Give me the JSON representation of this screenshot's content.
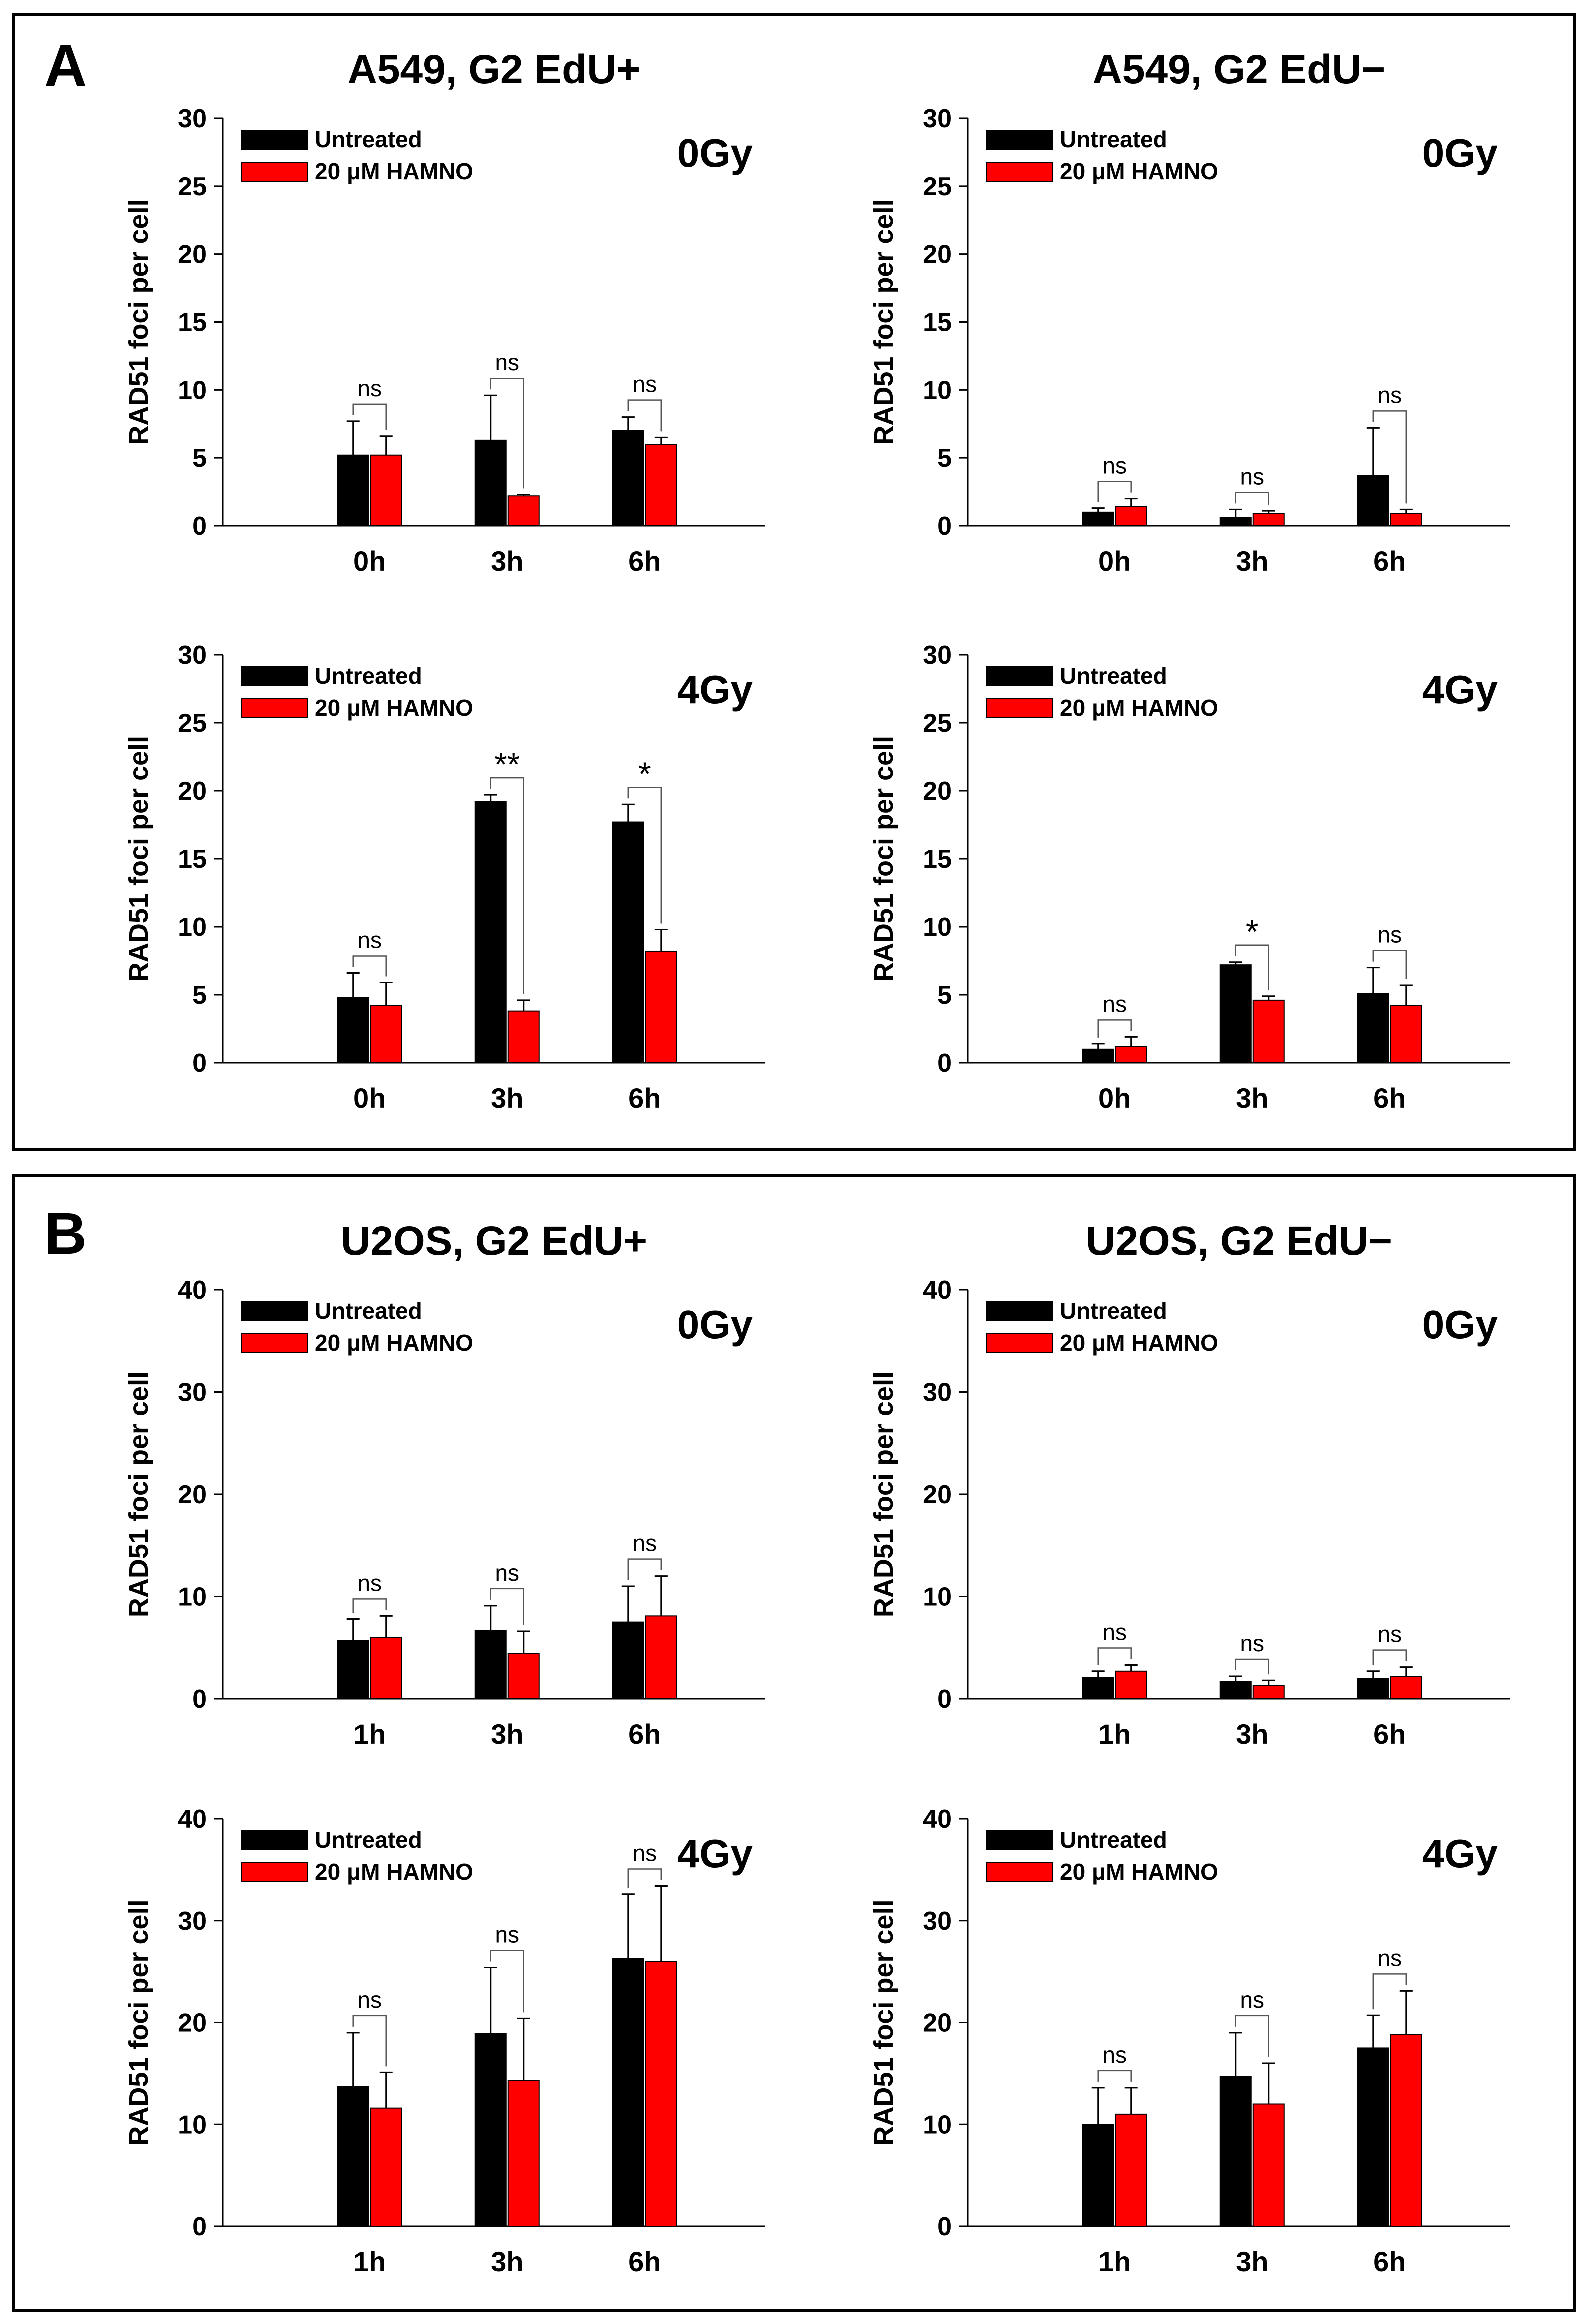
{
  "figure": {
    "panels": [
      {
        "letter": "A"
      },
      {
        "letter": "B"
      }
    ]
  },
  "legend": {
    "untreated": "Untreated",
    "treated": "20 μM HAMNO"
  },
  "colors": {
    "untreated": "#000000",
    "treated": "#ff0000",
    "frame": "#000000"
  },
  "chart_data": [
    {
      "type": "bar",
      "panel": "A",
      "title": "A549, G2 EdU+",
      "dose": "0Gy",
      "xlabel": "",
      "ylabel": "RAD51 foci per cell",
      "ylim": [
        0,
        30
      ],
      "yticks": [
        0,
        5,
        10,
        15,
        20,
        25,
        30
      ],
      "categories": [
        "0h",
        "3h",
        "6h"
      ],
      "series": [
        {
          "name": "Untreated",
          "values": [
            5.2,
            6.3,
            7.0
          ],
          "errors": [
            2.5,
            3.3,
            1.0
          ]
        },
        {
          "name": "20 μM HAMNO",
          "values": [
            5.2,
            2.2,
            6.0
          ],
          "errors": [
            1.4,
            0.1,
            0.5
          ]
        }
      ],
      "significance": [
        "ns",
        "ns",
        "ns"
      ]
    },
    {
      "type": "bar",
      "panel": "A",
      "title": "A549, G2 EdU−",
      "dose": "0Gy",
      "xlabel": "",
      "ylabel": "RAD51 foci per cell",
      "ylim": [
        0,
        30
      ],
      "yticks": [
        0,
        5,
        10,
        15,
        20,
        25,
        30
      ],
      "categories": [
        "0h",
        "3h",
        "6h"
      ],
      "series": [
        {
          "name": "Untreated",
          "values": [
            1.0,
            0.6,
            3.7
          ],
          "errors": [
            0.3,
            0.6,
            3.5
          ]
        },
        {
          "name": "20 μM HAMNO",
          "values": [
            1.4,
            0.9,
            0.9
          ],
          "errors": [
            0.6,
            0.2,
            0.3
          ]
        }
      ],
      "significance": [
        "ns",
        "ns",
        "ns"
      ]
    },
    {
      "type": "bar",
      "panel": "A",
      "title": "",
      "dose": "4Gy",
      "xlabel": "",
      "ylabel": "RAD51 foci per cell",
      "ylim": [
        0,
        30
      ],
      "yticks": [
        0,
        5,
        10,
        15,
        20,
        25,
        30
      ],
      "categories": [
        "0h",
        "3h",
        "6h"
      ],
      "series": [
        {
          "name": "Untreated",
          "values": [
            4.8,
            19.2,
            17.7
          ],
          "errors": [
            1.8,
            0.5,
            1.3
          ]
        },
        {
          "name": "20 μM HAMNO",
          "values": [
            4.2,
            3.8,
            8.2
          ],
          "errors": [
            1.7,
            0.8,
            1.6
          ]
        }
      ],
      "significance": [
        "ns",
        "**",
        "*"
      ]
    },
    {
      "type": "bar",
      "panel": "A",
      "title": "",
      "dose": "4Gy",
      "xlabel": "",
      "ylabel": "RAD51 foci per cell",
      "ylim": [
        0,
        30
      ],
      "yticks": [
        0,
        5,
        10,
        15,
        20,
        25,
        30
      ],
      "categories": [
        "0h",
        "3h",
        "6h"
      ],
      "series": [
        {
          "name": "Untreated",
          "values": [
            1.0,
            7.2,
            5.1
          ],
          "errors": [
            0.4,
            0.2,
            1.9
          ]
        },
        {
          "name": "20 μM HAMNO",
          "values": [
            1.2,
            4.6,
            4.2
          ],
          "errors": [
            0.7,
            0.3,
            1.5
          ]
        }
      ],
      "significance": [
        "ns",
        "*",
        "ns"
      ]
    },
    {
      "type": "bar",
      "panel": "B",
      "title": "U2OS, G2 EdU+",
      "dose": "0Gy",
      "xlabel": "",
      "ylabel": "RAD51 foci per cell",
      "ylim": [
        0,
        40
      ],
      "yticks": [
        0,
        10,
        20,
        30,
        40
      ],
      "categories": [
        "1h",
        "3h",
        "6h"
      ],
      "series": [
        {
          "name": "Untreated",
          "values": [
            5.7,
            6.7,
            7.5
          ],
          "errors": [
            2.1,
            2.4,
            3.5
          ]
        },
        {
          "name": "20 μM HAMNO",
          "values": [
            6.0,
            4.4,
            8.1
          ],
          "errors": [
            2.1,
            2.2,
            3.9
          ]
        }
      ],
      "significance": [
        "ns",
        "ns",
        "ns"
      ]
    },
    {
      "type": "bar",
      "panel": "B",
      "title": "U2OS, G2 EdU−",
      "dose": "0Gy",
      "xlabel": "",
      "ylabel": "RAD51 foci per cell",
      "ylim": [
        0,
        40
      ],
      "yticks": [
        0,
        10,
        20,
        30,
        40
      ],
      "categories": [
        "1h",
        "3h",
        "6h"
      ],
      "series": [
        {
          "name": "Untreated",
          "values": [
            2.1,
            1.7,
            2.0
          ],
          "errors": [
            0.6,
            0.5,
            0.7
          ]
        },
        {
          "name": "20 μM HAMNO",
          "values": [
            2.7,
            1.3,
            2.2
          ],
          "errors": [
            0.6,
            0.5,
            0.9
          ]
        }
      ],
      "significance": [
        "ns",
        "ns",
        "ns"
      ]
    },
    {
      "type": "bar",
      "panel": "B",
      "title": "",
      "dose": "4Gy",
      "xlabel": "",
      "ylabel": "RAD51 foci per cell",
      "ylim": [
        0,
        40
      ],
      "yticks": [
        0,
        10,
        20,
        30,
        40
      ],
      "categories": [
        "1h",
        "3h",
        "6h"
      ],
      "series": [
        {
          "name": "Untreated",
          "values": [
            13.7,
            18.9,
            26.3
          ],
          "errors": [
            5.3,
            6.5,
            6.3
          ]
        },
        {
          "name": "20 μM HAMNO",
          "values": [
            11.6,
            14.3,
            26.0
          ],
          "errors": [
            3.5,
            6.1,
            7.4
          ]
        }
      ],
      "significance": [
        "ns",
        "ns",
        "ns"
      ]
    },
    {
      "type": "bar",
      "panel": "B",
      "title": "",
      "dose": "4Gy",
      "xlabel": "",
      "ylabel": "RAD51 foci per cell",
      "ylim": [
        0,
        40
      ],
      "yticks": [
        0,
        10,
        20,
        30,
        40
      ],
      "categories": [
        "1h",
        "3h",
        "6h"
      ],
      "series": [
        {
          "name": "Untreated",
          "values": [
            10.0,
            14.7,
            17.5
          ],
          "errors": [
            3.6,
            4.3,
            3.2
          ]
        },
        {
          "name": "20 μM HAMNO",
          "values": [
            11.0,
            12.0,
            18.8
          ],
          "errors": [
            2.6,
            4.0,
            4.3
          ]
        }
      ],
      "significance": [
        "ns",
        "ns",
        "ns"
      ]
    }
  ]
}
